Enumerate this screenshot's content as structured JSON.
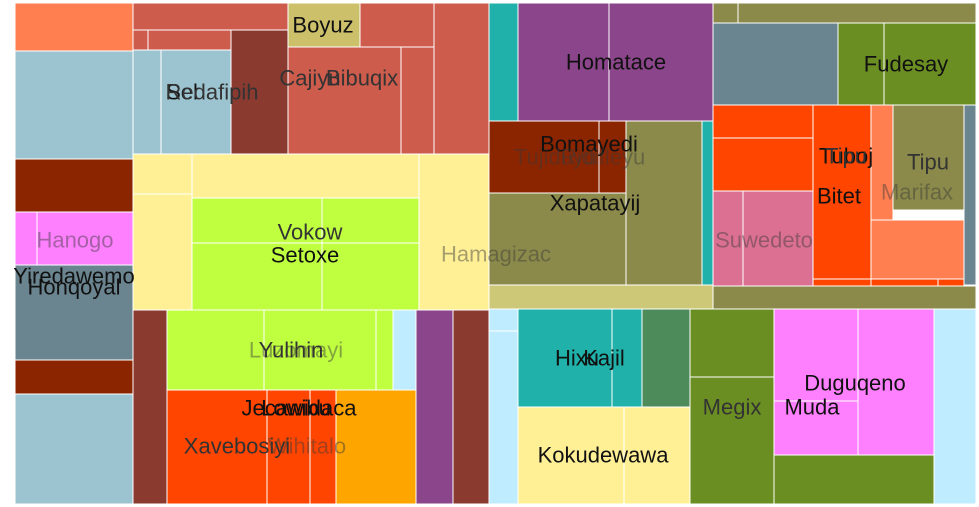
{
  "chart_data": {
    "type": "treemap",
    "title": "",
    "labels": [
      {
        "id": "t0",
        "text": "Boyuz",
        "tone": "dark"
      },
      {
        "id": "t1",
        "text": "Cajiyu",
        "tone": "mid"
      },
      {
        "id": "t2",
        "text": "Bibuqix",
        "tone": "mid"
      },
      {
        "id": "t3",
        "text": "Sel",
        "tone": "dark"
      },
      {
        "id": "t4",
        "text": "Redafipih",
        "tone": "mid"
      },
      {
        "id": "t5",
        "text": "Homatace",
        "tone": "dark"
      },
      {
        "id": "t6",
        "text": "Fudesay",
        "tone": "dark"
      },
      {
        "id": "t7",
        "text": "Bomayedi",
        "tone": "dark"
      },
      {
        "id": "t8",
        "text": "Tujiduyu",
        "tone": "faint"
      },
      {
        "id": "t9",
        "text": "Ridifleyu",
        "tone": "faint"
      },
      {
        "id": "t10",
        "text": "Xapatayij",
        "tone": "dark"
      },
      {
        "id": "t11",
        "text": "Hamagizac",
        "tone": "faint"
      },
      {
        "id": "t12",
        "text": "Tuboj",
        "tone": "dark"
      },
      {
        "id": "t13",
        "text": "Tipu",
        "tone": "mid"
      },
      {
        "id": "t14",
        "text": "Tipu",
        "tone": "mid"
      },
      {
        "id": "t15",
        "text": "Bitet",
        "tone": "dark"
      },
      {
        "id": "t16",
        "text": "Marifax",
        "tone": "faint"
      },
      {
        "id": "t17",
        "text": "Suwedeto",
        "tone": "faint"
      },
      {
        "id": "t18",
        "text": "Hanogo",
        "tone": "faint"
      },
      {
        "id": "t19",
        "text": "Vokow",
        "tone": "mid"
      },
      {
        "id": "t20",
        "text": "Setoxe",
        "tone": "dark"
      },
      {
        "id": "t21",
        "text": "Yiredawemo",
        "tone": "dark"
      },
      {
        "id": "t22",
        "text": "Honqoyal",
        "tone": "dark"
      },
      {
        "id": "t23",
        "text": "Luzomayi",
        "tone": "faint"
      },
      {
        "id": "t24",
        "text": "Yulihin",
        "tone": "mid"
      },
      {
        "id": "t25",
        "text": "Jecawidaca",
        "tone": "dark"
      },
      {
        "id": "t26",
        "text": "Lowibu",
        "tone": "dark"
      },
      {
        "id": "t27",
        "text": "Xavebosiyi",
        "tone": "mid"
      },
      {
        "id": "t28",
        "text": "Wihitalo",
        "tone": "faint"
      },
      {
        "id": "t29",
        "text": "Hixu",
        "tone": "dark"
      },
      {
        "id": "t30",
        "text": "Kajil",
        "tone": "dark"
      },
      {
        "id": "t31",
        "text": "Kokudewawa",
        "tone": "dark"
      },
      {
        "id": "t32",
        "text": "Megix",
        "tone": "mid"
      },
      {
        "id": "t33",
        "text": "Duguqeno",
        "tone": "dark"
      },
      {
        "id": "t34",
        "text": "Muda",
        "tone": "dark"
      }
    ],
    "cells": [
      {
        "id": "c0",
        "color": "#ff7f50"
      },
      {
        "id": "c1",
        "color": "#cd5c4c"
      },
      {
        "id": "c2",
        "color": "#cd5c4c"
      },
      {
        "id": "c3",
        "color": "#cd5c4c"
      },
      {
        "id": "c4",
        "color": "#cdc06b"
      },
      {
        "id": "c5",
        "color": "#cd5c4c"
      },
      {
        "id": "c6",
        "color": "#9cc4d0"
      },
      {
        "id": "c7",
        "color": "#9cc4d0"
      },
      {
        "id": "c8",
        "color": "#9cc4d0"
      },
      {
        "id": "c9",
        "color": "#8b3a30"
      },
      {
        "id": "c10",
        "color": "#cd5c4c"
      },
      {
        "id": "c11",
        "color": "#cd5c4c"
      },
      {
        "id": "c12",
        "color": "#cd5c4c"
      },
      {
        "id": "c13",
        "color": "#20b2aa"
      },
      {
        "id": "c14",
        "color": "#8b468b"
      },
      {
        "id": "c15",
        "color": "#8b468b"
      },
      {
        "id": "c16",
        "color": "#8b8a4a"
      },
      {
        "id": "c17",
        "color": "#8b8a4a"
      },
      {
        "id": "c18",
        "color": "#6b8590"
      },
      {
        "id": "c19",
        "color": "#6b8e23"
      },
      {
        "id": "c20",
        "color": "#6b8e23"
      },
      {
        "id": "c21",
        "color": "#8b2500"
      },
      {
        "id": "c22",
        "color": "#8b2500"
      },
      {
        "id": "c23",
        "color": "#8b8a4a"
      },
      {
        "id": "c24",
        "color": "#20b2aa"
      },
      {
        "id": "c25",
        "color": "#8b8a4a"
      },
      {
        "id": "c26",
        "color": "#cdc877"
      },
      {
        "id": "c27",
        "color": "#ff4500"
      },
      {
        "id": "c28",
        "color": "#ff4500"
      },
      {
        "id": "c29",
        "color": "#ff4500"
      },
      {
        "id": "c30",
        "color": "#ff7f50"
      },
      {
        "id": "c31",
        "color": "#8b8a4a"
      },
      {
        "id": "c32",
        "color": "#6b8590"
      },
      {
        "id": "c33",
        "color": "#db7093"
      },
      {
        "id": "c34",
        "color": "#db7093"
      },
      {
        "id": "c35",
        "color": "#ff4500"
      },
      {
        "id": "c36",
        "color": "#ff4500"
      },
      {
        "id": "c37",
        "color": "#ff7f50"
      },
      {
        "id": "c38",
        "color": "#ff4500"
      },
      {
        "id": "c39",
        "color": "#8b8a4a"
      },
      {
        "id": "c40",
        "color": "#8b2500"
      },
      {
        "id": "c41",
        "color": "#ff80ff"
      },
      {
        "id": "c42",
        "color": "#ff80ff"
      },
      {
        "id": "c43",
        "color": "#6b8590"
      },
      {
        "id": "c44",
        "color": "#8b2500"
      },
      {
        "id": "c45",
        "color": "#9cc4d0"
      },
      {
        "id": "c46",
        "color": "#fff096"
      },
      {
        "id": "c47",
        "color": "#fff096"
      },
      {
        "id": "c48",
        "color": "#fff096"
      },
      {
        "id": "c49",
        "color": "#fff096"
      },
      {
        "id": "c50",
        "color": "#c0ff40"
      },
      {
        "id": "c51",
        "color": "#c0ff40"
      },
      {
        "id": "c52",
        "color": "#c0ff40"
      },
      {
        "id": "c53",
        "color": "#c0ff40"
      },
      {
        "id": "c54",
        "color": "#fff096"
      },
      {
        "id": "c55",
        "color": "#8b3a30"
      },
      {
        "id": "c56",
        "color": "#c0ff40"
      },
      {
        "id": "c57",
        "color": "#c0ff40"
      },
      {
        "id": "c58",
        "color": "#c0ff40"
      },
      {
        "id": "c59",
        "color": "#c0ff40"
      },
      {
        "id": "c60",
        "color": "#c0ecff"
      },
      {
        "id": "c61",
        "color": "#8b468b"
      },
      {
        "id": "c62",
        "color": "#8b3a30"
      },
      {
        "id": "c63",
        "color": "#ff4500"
      },
      {
        "id": "c64",
        "color": "#ff4500"
      },
      {
        "id": "c65",
        "color": "#ff4500"
      },
      {
        "id": "c66",
        "color": "#ff4500"
      },
      {
        "id": "c67",
        "color": "#ffa500"
      },
      {
        "id": "c68",
        "color": "#c0ecff"
      },
      {
        "id": "c69",
        "color": "#c0ecff"
      },
      {
        "id": "c70",
        "color": "#20b2aa"
      },
      {
        "id": "c71",
        "color": "#20b2aa"
      },
      {
        "id": "c72",
        "color": "#4e8b5a"
      },
      {
        "id": "c73",
        "color": "#fff096"
      },
      {
        "id": "c74",
        "color": "#fff096"
      },
      {
        "id": "c75",
        "color": "#6b8e23"
      },
      {
        "id": "c76",
        "color": "#6b8e23"
      },
      {
        "id": "c77",
        "color": "#ff80ff"
      },
      {
        "id": "c78",
        "color": "#ff80ff"
      },
      {
        "id": "c79",
        "color": "#ff80ff"
      },
      {
        "id": "c80",
        "color": "#6b8e23"
      },
      {
        "id": "c81",
        "color": "#c0ecff"
      }
    ]
  }
}
